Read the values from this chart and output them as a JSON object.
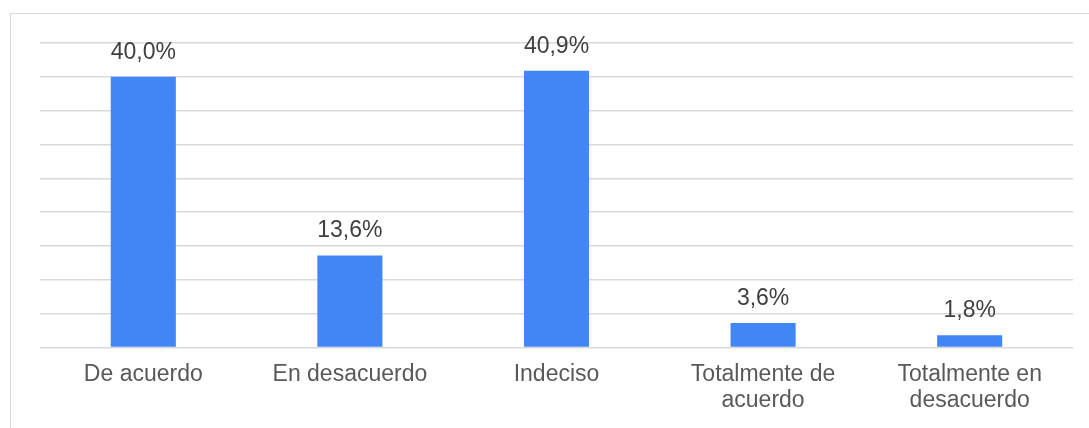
{
  "chart_data": {
    "type": "bar",
    "categories": [
      "De acuerdo",
      "En desacuerdo",
      "Indeciso",
      "Totalmente de acuerdo",
      "Totalmente en desacuerdo"
    ],
    "values": [
      40.0,
      13.6,
      40.9,
      3.6,
      1.8
    ],
    "value_labels": [
      "40,0%",
      "13,6%",
      "40,9%",
      "3,6%",
      "1,8%"
    ],
    "color": "#4285f4",
    "ylim": [
      0,
      45
    ],
    "yticks": [
      {
        "value": 0,
        "label": null
      },
      {
        "value": 5,
        "label": null
      },
      {
        "value": 10,
        "label": null
      },
      {
        "value": 15,
        "label": null
      },
      {
        "value": 20,
        "label": null
      },
      {
        "value": 25,
        "label": null
      },
      {
        "value": 30,
        "label": null
      },
      {
        "value": 35,
        "label": null
      },
      {
        "value": 40,
        "label": null
      },
      {
        "value": 45,
        "label": null
      }
    ],
    "grid": "y",
    "tick_labels": "x"
  }
}
